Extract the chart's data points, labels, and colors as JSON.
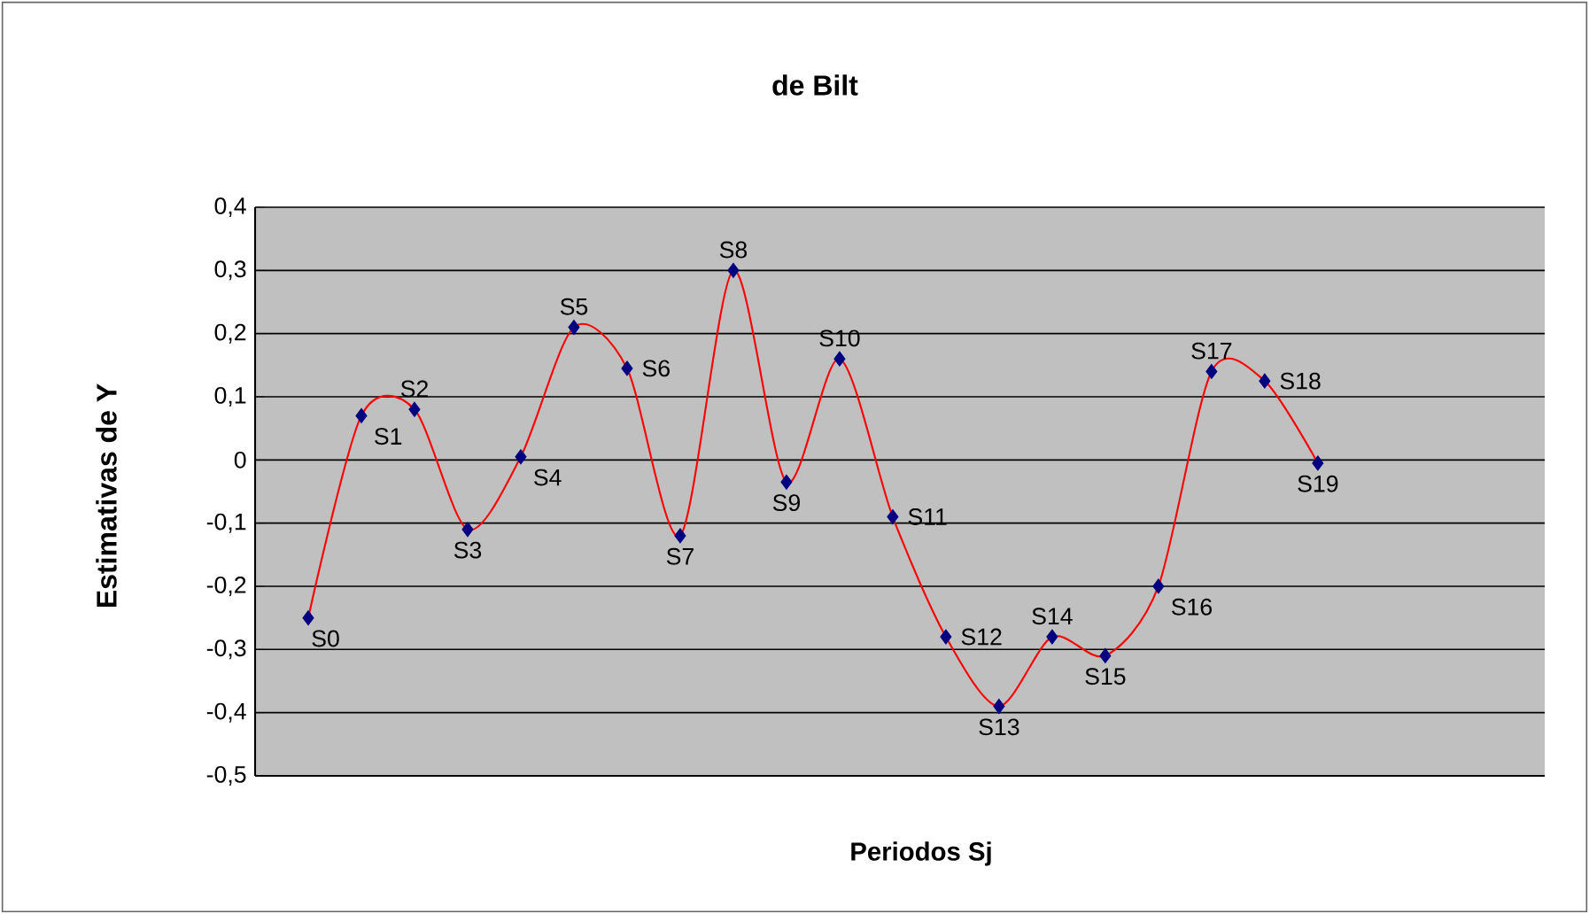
{
  "chart_data": {
    "type": "line",
    "title": "de Bilt",
    "xlabel": "Periodos  Sj",
    "ylabel": "Estimativas de Y",
    "categories": [
      null,
      null,
      null,
      null,
      null,
      null,
      null,
      null,
      null,
      null,
      null,
      null,
      null,
      null,
      null,
      null,
      null,
      null,
      null,
      null
    ],
    "series": [
      {
        "color": "#ff0000",
        "values": [
          -0.25,
          0.07,
          0.08,
          -0.11,
          0.005,
          0.21,
          0.145,
          -0.12,
          0.3,
          -0.035,
          0.16,
          -0.09,
          -0.28,
          -0.39,
          -0.28,
          -0.31,
          -0.2,
          0.14,
          0.125,
          -0.005
        ],
        "value_labels": [
          "S0",
          "S1",
          "S2",
          "S3",
          "S4",
          "S5",
          "S6",
          "S7",
          "S8",
          "S9",
          "S10",
          "S11",
          "S12",
          "S13",
          "S14",
          "S15",
          "S16",
          "S17",
          "S18",
          "S19"
        ]
      }
    ],
    "ylim": [
      -0.5,
      0.4
    ],
    "yticks": [
      {
        "value": -0.5,
        "label": "-0,5"
      },
      {
        "value": -0.4,
        "label": "-0,4"
      },
      {
        "value": -0.3,
        "label": "-0,3"
      },
      {
        "value": -0.2,
        "label": "-0,2"
      },
      {
        "value": -0.1,
        "label": "-0,1"
      },
      {
        "value": 0,
        "label": "0"
      },
      {
        "value": 0.1,
        "label": "0,1"
      },
      {
        "value": 0.2,
        "label": "0,2"
      },
      {
        "value": 0.3,
        "label": "0,3"
      },
      {
        "value": 0.4,
        "label": "0,4"
      }
    ],
    "grid": "y",
    "marker": "diamond",
    "line_style": "solid",
    "tick_labels": "y"
  }
}
